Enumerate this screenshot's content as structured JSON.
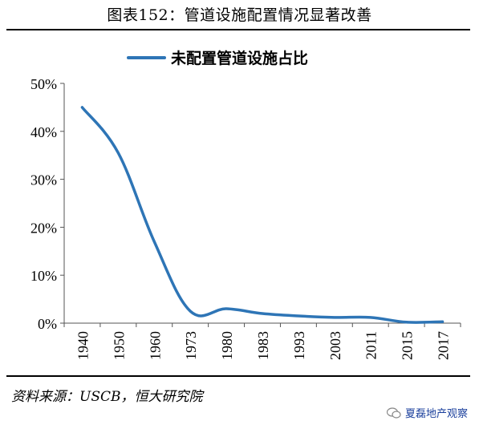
{
  "header": {
    "title": "图表152：管道设施配置情况显著改善"
  },
  "footer": {
    "source": "资料来源：USCB，恒大研究院",
    "watermark": "夏磊地产观察"
  },
  "chart_data": {
    "type": "line",
    "title": "",
    "xlabel": "",
    "ylabel": "",
    "categories": [
      "1940",
      "1950",
      "1960",
      "1973",
      "1980",
      "1983",
      "1993",
      "2003",
      "2011",
      "2015",
      "2017"
    ],
    "series": [
      {
        "name": "未配置管道设施占比",
        "values": [
          45,
          35.5,
          17,
          2.5,
          3,
          2,
          1.5,
          1.2,
          1.2,
          0.2,
          0.3
        ],
        "color": "#2e75b6"
      }
    ],
    "ylim": [
      0,
      50
    ],
    "yticks": [
      0,
      10,
      20,
      30,
      40,
      50
    ],
    "ytick_labels": [
      "0%",
      "10%",
      "20%",
      "30%",
      "40%",
      "50%"
    ],
    "legend": "top-center",
    "grid": false
  }
}
